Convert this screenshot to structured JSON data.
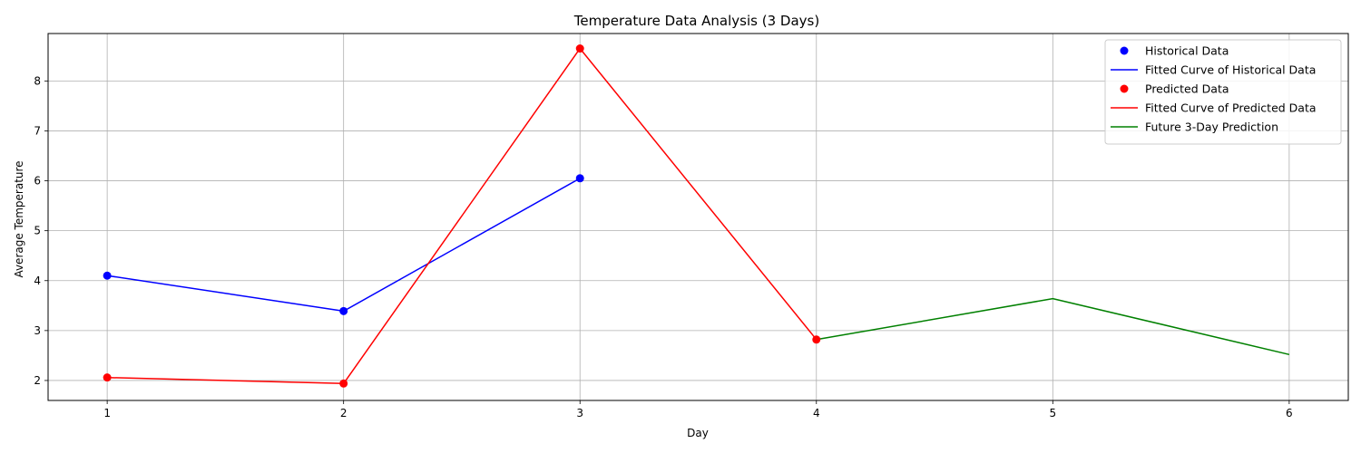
{
  "chart_data": {
    "type": "line",
    "title": "Temperature Data Analysis (3 Days)",
    "xlabel": "Day",
    "ylabel": "Average Temperature",
    "xlim": [
      0.75,
      6.25
    ],
    "ylim": [
      1.6,
      8.95
    ],
    "xticks": [
      1,
      2,
      3,
      4,
      5,
      6
    ],
    "yticks": [
      2,
      3,
      4,
      5,
      6,
      7,
      8
    ],
    "grid": true,
    "legend_position": "top-right",
    "series": [
      {
        "name": "Historical Data",
        "style": "markers",
        "color": "#0000ff",
        "x": [
          1,
          2,
          3
        ],
        "y": [
          4.1,
          3.39,
          6.05
        ]
      },
      {
        "name": "Fitted Curve of Historical Data",
        "style": "line",
        "color": "#0000ff",
        "x": [
          1,
          2,
          3
        ],
        "y": [
          4.1,
          3.39,
          6.05
        ]
      },
      {
        "name": "Predicted Data",
        "style": "markers",
        "color": "#ff0000",
        "x": [
          1,
          2,
          3,
          4
        ],
        "y": [
          2.06,
          1.94,
          8.65,
          2.82
        ]
      },
      {
        "name": "Fitted Curve of Predicted Data",
        "style": "line",
        "color": "#ff0000",
        "x": [
          1,
          2,
          3,
          4
        ],
        "y": [
          2.06,
          1.94,
          8.65,
          2.82
        ]
      },
      {
        "name": "Future 3-Day Prediction",
        "style": "line",
        "color": "#008000",
        "x": [
          4,
          5,
          6
        ],
        "y": [
          2.82,
          3.64,
          2.52
        ]
      }
    ]
  }
}
